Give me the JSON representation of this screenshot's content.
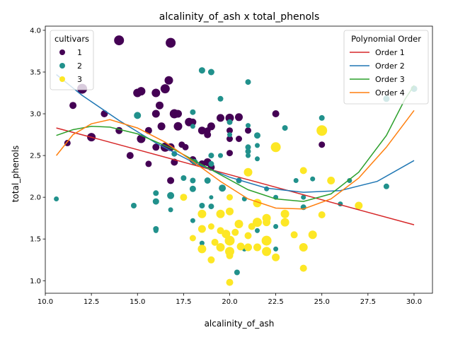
{
  "chart_data": {
    "type": "scatter",
    "title": "alcalinity_of_ash x total_phenols",
    "xlabel": "alcalinity_of_ash",
    "ylabel": "total_phenols",
    "xlim": [
      10.0,
      31.0
    ],
    "ylim": [
      0.85,
      4.05
    ],
    "xticks": [
      10.0,
      12.5,
      15.0,
      17.5,
      20.0,
      22.5,
      25.0,
      27.5,
      30.0
    ],
    "xtick_labels": [
      "10.0",
      "12.5",
      "15.0",
      "17.5",
      "20.0",
      "22.5",
      "25.0",
      "27.5",
      "30.0"
    ],
    "yticks": [
      1.0,
      1.5,
      2.0,
      2.5,
      3.0,
      3.5,
      4.0
    ],
    "ytick_labels": [
      "1.0",
      "1.5",
      "2.0",
      "2.5",
      "3.0",
      "3.5",
      "4.0"
    ],
    "grid": false,
    "legends": [
      {
        "title": "cultivars",
        "placement": "top-left",
        "entries": [
          {
            "label": "1",
            "color": "#440154"
          },
          {
            "label": "2",
            "color": "#21918c"
          },
          {
            "label": "3",
            "color": "#fde725"
          }
        ]
      },
      {
        "title": "Polynomial Order",
        "placement": "top-right",
        "entries": [
          {
            "label": "Order 1",
            "color": "#d62728"
          },
          {
            "label": "Order 2",
            "color": "#1f77b4"
          },
          {
            "label": "Order 3",
            "color": "#2ca02c"
          },
          {
            "label": "Order 4",
            "color": "#ff7f0e"
          }
        ]
      }
    ],
    "series": [
      {
        "name": "1",
        "color": "#440154",
        "points": [
          [
            14.0,
            3.88,
            14
          ],
          [
            16.8,
            3.85,
            14
          ],
          [
            12.0,
            3.3,
            14
          ],
          [
            16.7,
            3.4,
            12
          ],
          [
            11.5,
            3.1,
            10
          ],
          [
            13.2,
            3.0,
            10
          ],
          [
            15.2,
            3.27,
            12
          ],
          [
            15.0,
            3.25,
            12
          ],
          [
            16.0,
            3.25,
            12
          ],
          [
            16.5,
            3.3,
            13
          ],
          [
            16.2,
            3.1,
            11
          ],
          [
            17.0,
            3.0,
            13
          ],
          [
            17.2,
            3.0,
            11
          ],
          [
            16.0,
            3.0,
            11
          ],
          [
            16.3,
            2.85,
            11
          ],
          [
            17.2,
            2.85,
            12
          ],
          [
            17.8,
            2.9,
            12
          ],
          [
            18.0,
            2.9,
            10
          ],
          [
            18.5,
            2.8,
            11
          ],
          [
            18.8,
            2.8,
            9
          ],
          [
            19.0,
            2.85,
            11
          ],
          [
            19.5,
            2.95,
            11
          ],
          [
            20.0,
            2.95,
            12
          ],
          [
            20.5,
            2.96,
            11
          ],
          [
            20.0,
            2.8,
            9
          ],
          [
            20.0,
            2.7,
            9
          ],
          [
            20.5,
            2.7,
            9
          ],
          [
            21.0,
            2.8,
            9
          ],
          [
            22.5,
            3.0,
            10
          ],
          [
            11.2,
            2.65,
            9
          ],
          [
            12.5,
            2.72,
            12
          ],
          [
            14.0,
            2.8,
            10
          ],
          [
            15.2,
            2.7,
            12
          ],
          [
            15.6,
            2.8,
            10
          ],
          [
            16.0,
            2.6,
            10
          ],
          [
            16.5,
            2.6,
            13
          ],
          [
            16.8,
            2.6,
            11
          ],
          [
            17.4,
            2.63,
            9
          ],
          [
            17.6,
            2.6,
            9
          ],
          [
            18.0,
            2.45,
            10
          ],
          [
            18.5,
            2.4,
            10
          ],
          [
            18.8,
            2.42,
            11
          ],
          [
            19.0,
            2.36,
            10
          ],
          [
            20.0,
            2.53,
            9
          ],
          [
            15.6,
            2.4,
            9
          ],
          [
            17.0,
            2.42,
            10
          ],
          [
            16.8,
            2.2,
            10
          ],
          [
            14.6,
            2.5,
            10
          ],
          [
            18.8,
            2.75,
            10
          ],
          [
            25.0,
            2.63,
            9
          ]
        ]
      },
      {
        "name": "2",
        "color": "#21918c",
        "points": [
          [
            10.6,
            1.98,
            7
          ],
          [
            14.8,
            1.9,
            8
          ],
          [
            15.0,
            2.98,
            10
          ],
          [
            16.0,
            2.05,
            8
          ],
          [
            16.0,
            1.95,
            9
          ],
          [
            16.0,
            1.62,
            8
          ],
          [
            16.0,
            1.6,
            7
          ],
          [
            16.8,
            2.02,
            10
          ],
          [
            16.8,
            1.85,
            7
          ],
          [
            17.5,
            2.23,
            8
          ],
          [
            18.0,
            2.2,
            8
          ],
          [
            18.0,
            2.1,
            9
          ],
          [
            18.0,
            1.72,
            7
          ],
          [
            18.0,
            3.02,
            8
          ],
          [
            18.1,
            2.42,
            9
          ],
          [
            18.5,
            3.52,
            9
          ],
          [
            18.5,
            1.45,
            7
          ],
          [
            18.5,
            1.9,
            8
          ],
          [
            18.8,
            2.2,
            9
          ],
          [
            19.0,
            2.4,
            8
          ],
          [
            19.0,
            2.5,
            8
          ],
          [
            19.0,
            3.5,
            9
          ],
          [
            19.0,
            2.0,
            6
          ],
          [
            19.0,
            1.89,
            8
          ],
          [
            19.0,
            1.65,
            8
          ],
          [
            19.5,
            3.18,
            8
          ],
          [
            19.5,
            2.5,
            7
          ],
          [
            19.6,
            2.11,
            10
          ],
          [
            20.0,
            2.9,
            8
          ],
          [
            20.0,
            2.75,
            7
          ],
          [
            20.4,
            1.1,
            8
          ],
          [
            20.5,
            2.2,
            8
          ],
          [
            20.8,
            1.98,
            7
          ],
          [
            20.8,
            1.38,
            7
          ],
          [
            21.0,
            2.6,
            8
          ],
          [
            21.0,
            2.55,
            8
          ],
          [
            21.0,
            2.5,
            7
          ],
          [
            21.0,
            2.86,
            7
          ],
          [
            21.0,
            3.38,
            8
          ],
          [
            21.5,
            2.74,
            9
          ],
          [
            21.5,
            2.62,
            7
          ],
          [
            21.5,
            2.46,
            7
          ],
          [
            21.5,
            1.6,
            7
          ],
          [
            22.0,
            2.1,
            7
          ],
          [
            22.5,
            2.0,
            7
          ],
          [
            22.5,
            1.38,
            7
          ],
          [
            22.5,
            1.65,
            7
          ],
          [
            23.0,
            2.83,
            8
          ],
          [
            23.6,
            2.2,
            7
          ],
          [
            24.0,
            2.0,
            7
          ],
          [
            24.0,
            1.88,
            8
          ],
          [
            24.5,
            2.22,
            7
          ],
          [
            25.0,
            2.95,
            8
          ],
          [
            26.0,
            1.92,
            7
          ],
          [
            26.5,
            2.2,
            7
          ],
          [
            28.5,
            3.18,
            9
          ],
          [
            28.5,
            2.13,
            8
          ],
          [
            30.0,
            3.3,
            9
          ],
          [
            17.0,
            2.52,
            8
          ],
          [
            18.0,
            2.85,
            7
          ]
        ]
      },
      {
        "name": "3",
        "color": "#fde725",
        "points": [
          [
            17.5,
            2.0,
            10
          ],
          [
            18.0,
            1.51,
            9
          ],
          [
            18.5,
            1.8,
            12
          ],
          [
            18.5,
            1.62,
            11
          ],
          [
            18.5,
            1.38,
            12
          ],
          [
            19.0,
            1.25,
            10
          ],
          [
            19.0,
            1.65,
            9
          ],
          [
            19.5,
            1.4,
            12
          ],
          [
            19.5,
            1.8,
            12
          ],
          [
            19.5,
            1.6,
            10
          ],
          [
            20.0,
            1.48,
            14
          ],
          [
            20.0,
            1.35,
            13
          ],
          [
            20.0,
            1.3,
            10
          ],
          [
            20.0,
            1.83,
            11
          ],
          [
            20.0,
            2.0,
            9
          ],
          [
            20.0,
            0.98,
            10
          ],
          [
            20.5,
            1.68,
            12
          ],
          [
            21.0,
            1.4,
            11
          ],
          [
            21.0,
            1.54,
            10
          ],
          [
            21.0,
            2.3,
            12
          ],
          [
            21.5,
            1.93,
            12
          ],
          [
            21.5,
            1.7,
            13
          ],
          [
            21.5,
            1.4,
            11
          ],
          [
            22.0,
            1.35,
            13
          ],
          [
            22.0,
            1.48,
            14
          ],
          [
            22.0,
            1.75,
            12
          ],
          [
            22.0,
            1.7,
            11
          ],
          [
            22.5,
            1.28,
            11
          ],
          [
            22.5,
            2.6,
            14
          ],
          [
            23.0,
            1.8,
            12
          ],
          [
            23.0,
            1.7,
            12
          ],
          [
            23.5,
            1.55,
            10
          ],
          [
            24.0,
            1.4,
            12
          ],
          [
            24.0,
            1.15,
            10
          ],
          [
            24.0,
            2.32,
            10
          ],
          [
            24.5,
            1.55,
            12
          ],
          [
            25.0,
            1.79,
            10
          ],
          [
            25.0,
            2.8,
            15
          ],
          [
            25.5,
            2.2,
            11
          ],
          [
            27.0,
            1.9,
            11
          ],
          [
            19.8,
            1.56,
            12
          ],
          [
            20.3,
            1.58,
            10
          ],
          [
            21.2,
            1.65,
            10
          ],
          [
            20.6,
            1.41,
            11
          ],
          [
            19.2,
            1.46,
            10
          ]
        ]
      }
    ],
    "fit_lines": [
      {
        "name": "Order 1",
        "color": "#d62728",
        "points": [
          [
            10.6,
            2.83
          ],
          [
            13.0,
            2.69
          ],
          [
            15.0,
            2.57
          ],
          [
            17.0,
            2.45
          ],
          [
            19.0,
            2.33
          ],
          [
            21.0,
            2.21
          ],
          [
            23.0,
            2.09
          ],
          [
            25.0,
            1.97
          ],
          [
            27.0,
            1.85
          ],
          [
            30.0,
            1.67
          ]
        ]
      },
      {
        "name": "Order 2",
        "color": "#1f77b4",
        "points": [
          [
            10.6,
            3.47
          ],
          [
            12.0,
            3.22
          ],
          [
            14.0,
            2.92
          ],
          [
            16.0,
            2.65
          ],
          [
            18.0,
            2.42
          ],
          [
            20.0,
            2.24
          ],
          [
            22.0,
            2.11
          ],
          [
            24.0,
            2.06
          ],
          [
            26.0,
            2.08
          ],
          [
            28.0,
            2.19
          ],
          [
            30.0,
            2.44
          ]
        ]
      },
      {
        "name": "Order 3",
        "color": "#2ca02c",
        "points": [
          [
            10.6,
            2.74
          ],
          [
            11.5,
            2.81
          ],
          [
            12.5,
            2.85
          ],
          [
            13.5,
            2.84
          ],
          [
            15.0,
            2.76
          ],
          [
            17.0,
            2.57
          ],
          [
            19.0,
            2.33
          ],
          [
            21.0,
            2.09
          ],
          [
            22.5,
            1.98
          ],
          [
            24.0,
            1.95
          ],
          [
            25.5,
            2.04
          ],
          [
            27.0,
            2.3
          ],
          [
            28.5,
            2.74
          ],
          [
            29.5,
            3.17
          ],
          [
            30.0,
            3.34
          ]
        ]
      },
      {
        "name": "Order 4",
        "color": "#ff7f0e",
        "points": [
          [
            10.6,
            2.5
          ],
          [
            11.5,
            2.75
          ],
          [
            12.5,
            2.88
          ],
          [
            13.5,
            2.93
          ],
          [
            15.0,
            2.83
          ],
          [
            16.5,
            2.66
          ],
          [
            18.0,
            2.43
          ],
          [
            19.5,
            2.19
          ],
          [
            21.0,
            1.98
          ],
          [
            22.5,
            1.87
          ],
          [
            24.0,
            1.86
          ],
          [
            25.5,
            1.98
          ],
          [
            27.0,
            2.23
          ],
          [
            28.5,
            2.6
          ],
          [
            30.0,
            3.04
          ]
        ]
      }
    ]
  }
}
